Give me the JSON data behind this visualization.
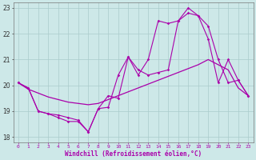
{
  "xlabel": "Windchill (Refroidissement éolien,°C)",
  "xlim": [
    -0.5,
    23.5
  ],
  "ylim": [
    17.8,
    23.2
  ],
  "yticks": [
    18,
    19,
    20,
    21,
    22,
    23
  ],
  "xticks": [
    0,
    1,
    2,
    3,
    4,
    5,
    6,
    7,
    8,
    9,
    10,
    11,
    12,
    13,
    14,
    15,
    16,
    17,
    18,
    19,
    20,
    21,
    22,
    23
  ],
  "bg_color": "#cde8e8",
  "grid_color": "#aacccc",
  "line_color": "#aa00aa",
  "line1_x": [
    0,
    1,
    2,
    3,
    4,
    5,
    6,
    7,
    8,
    9,
    10,
    11,
    12,
    13,
    14,
    15,
    16,
    17,
    18,
    19,
    20,
    21,
    22,
    23
  ],
  "line1_y": [
    20.1,
    19.85,
    19.7,
    19.55,
    19.45,
    19.35,
    19.3,
    19.25,
    19.3,
    19.45,
    19.6,
    19.75,
    19.9,
    20.05,
    20.2,
    20.35,
    20.5,
    20.65,
    20.8,
    21.0,
    20.8,
    20.6,
    19.9,
    19.6
  ],
  "line2_x": [
    0,
    1,
    2,
    3,
    4,
    5,
    6,
    7,
    8,
    9,
    10,
    11,
    12,
    13,
    14,
    15,
    16,
    17,
    18,
    19,
    20,
    21,
    22,
    23
  ],
  "line2_y": [
    20.1,
    19.9,
    19.0,
    18.9,
    18.75,
    18.6,
    18.6,
    18.2,
    19.1,
    19.6,
    19.5,
    21.1,
    20.4,
    21.0,
    22.5,
    22.4,
    22.5,
    22.8,
    22.7,
    21.8,
    20.1,
    21.0,
    20.2,
    19.6
  ],
  "line3_x": [
    0,
    1,
    2,
    3,
    4,
    5,
    6,
    7,
    8,
    9,
    10,
    11,
    12,
    13,
    14,
    15,
    16,
    17,
    18,
    19,
    20,
    21,
    22,
    23
  ],
  "line3_y": [
    20.1,
    19.9,
    19.0,
    18.9,
    18.85,
    18.75,
    18.65,
    18.2,
    19.1,
    19.15,
    20.4,
    21.1,
    20.6,
    20.4,
    20.5,
    20.6,
    22.5,
    23.0,
    22.7,
    22.3,
    21.0,
    20.1,
    20.2,
    19.6
  ]
}
